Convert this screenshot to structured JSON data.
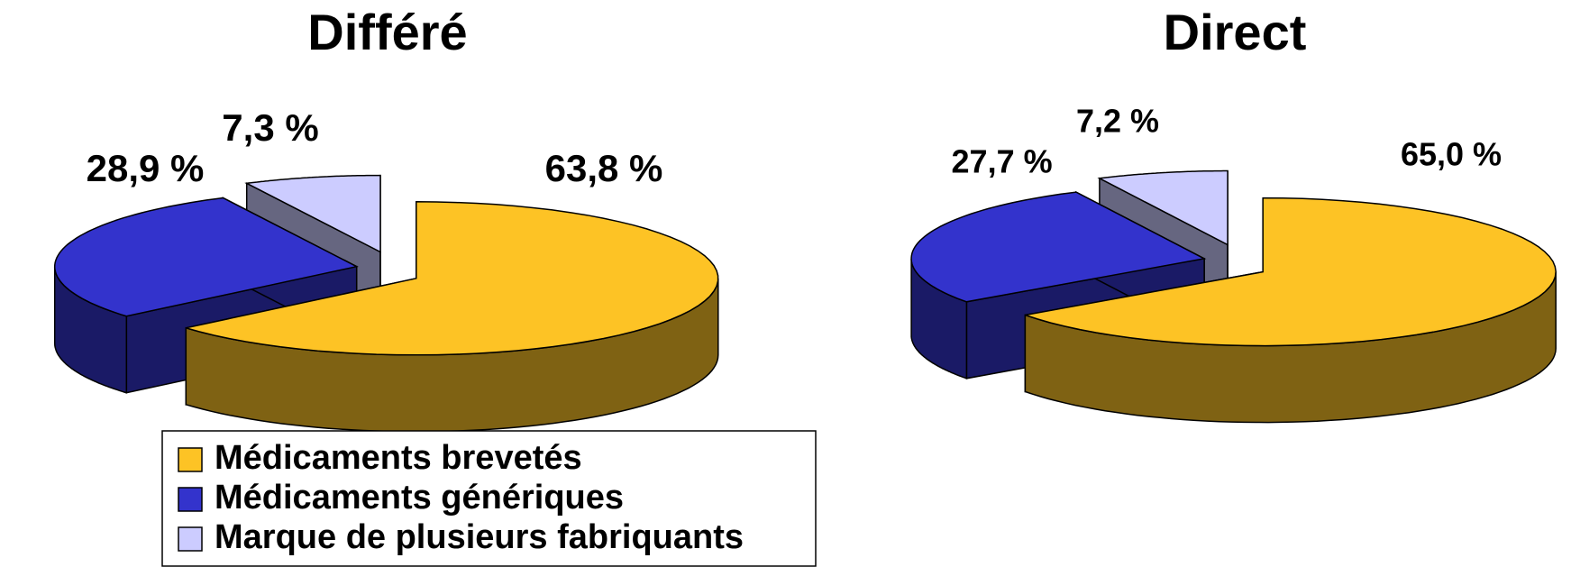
{
  "chart_data": [
    {
      "type": "pie3d",
      "title": "Différé",
      "categories": [
        "Médicaments brevetés",
        "Médicaments génériques",
        "Marque de plusieurs fabriquants"
      ],
      "values": [
        63.8,
        28.9,
        7.3
      ],
      "value_labels": [
        "63,8 %",
        "28,9 %",
        "7,3 %"
      ],
      "colors": [
        "#fdc325",
        "#3333cc",
        "#ccccff"
      ],
      "legend": "bottom"
    },
    {
      "type": "pie3d",
      "title": "Direct",
      "categories": [
        "Médicaments brevetés",
        "Médicaments génériques",
        "Marque de plusieurs fabriquants"
      ],
      "values": [
        65.0,
        27.7,
        7.2
      ],
      "value_labels": [
        "65,0 %",
        "27,7 %",
        "7,2 %"
      ],
      "colors": [
        "#fdc325",
        "#3333cc",
        "#ccccff"
      ]
    }
  ]
}
